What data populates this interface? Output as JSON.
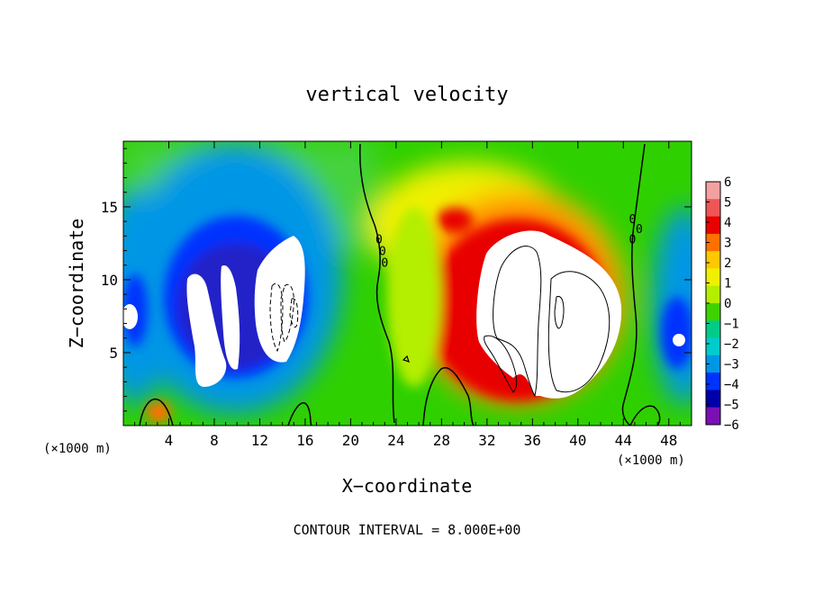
{
  "chart_data": {
    "type": "heatmap",
    "title": "vertical velocity",
    "xlabel": "X−coordinate",
    "ylabel": "Z−coordinate",
    "x_unit_label": "(×1000 m)",
    "x_unit_label_right": "(×1000 m)",
    "footer": "CONTOUR INTERVAL = 8.000E+00",
    "xlim": [
      0,
      50
    ],
    "ylim": [
      0,
      19.5
    ],
    "x_ticks": [
      4,
      8,
      12,
      16,
      20,
      24,
      28,
      32,
      36,
      40,
      44,
      48
    ],
    "y_ticks": [
      5,
      10,
      15
    ],
    "colorbar": {
      "ticks": [
        6,
        5,
        4,
        3,
        2,
        1,
        0,
        -1,
        -2,
        -3,
        -4,
        -5,
        -6
      ],
      "tick_labels": [
        "6",
        "5",
        "4",
        "3",
        "2",
        "1",
        "0",
        "−1",
        "−2",
        "−3",
        "−4",
        "−5",
        "−6"
      ],
      "colors": [
        "#f4a0a0",
        "#ef5555",
        "#e80000",
        "#ff7000",
        "#ffc800",
        "#f0f000",
        "#b4ee00",
        "#3fd200",
        "#00cc88",
        "#00cccc",
        "#0096e6",
        "#0032ff",
        "#0000a8",
        "#7a10b4"
      ]
    },
    "contour_labels": [
      {
        "text": "0",
        "x": 22.5,
        "y": 12.8
      },
      {
        "text": "0",
        "x": 22.8,
        "y": 12.0
      },
      {
        "text": "0",
        "x": 23.0,
        "y": 11.2
      },
      {
        "text": "0",
        "x": 44.8,
        "y": 14.2
      },
      {
        "text": "0",
        "x": 45.4,
        "y": 13.5
      },
      {
        "text": "0",
        "x": 44.8,
        "y": 12.8
      }
    ],
    "features": [
      {
        "kind": "updraft",
        "x": 36.5,
        "z": 9.0,
        "peak": 8.0,
        "sx": 5.5,
        "sz": 5.0
      },
      {
        "kind": "downdraft",
        "x": 11.0,
        "z": 8.5,
        "peak": -8.0,
        "sx": 4.0,
        "sz": 4.0
      }
    ]
  }
}
